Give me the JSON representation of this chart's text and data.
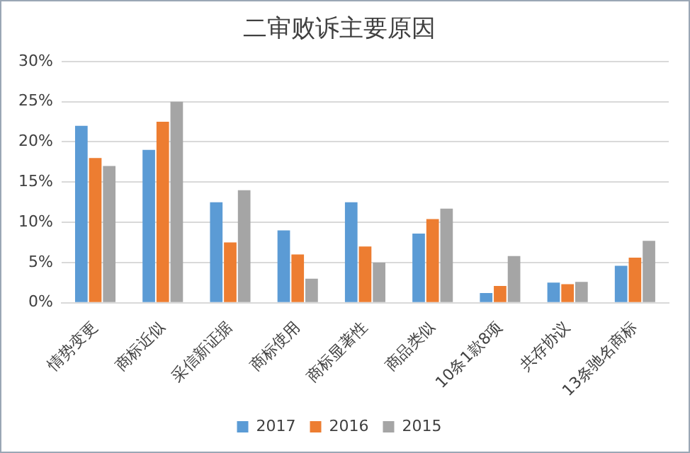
{
  "chart_data": {
    "type": "bar",
    "title": "二审败诉主要原因",
    "categories": [
      "情势变更",
      "商标近似",
      "采信新证据",
      "商标使用",
      "商标显著性",
      "商品类似",
      "10条1款8项",
      "共存协议",
      "13条驰名商标"
    ],
    "series": [
      {
        "name": "2017",
        "color": "#5b9bd5",
        "values": [
          22,
          19,
          12.5,
          9,
          12.5,
          8.6,
          1.2,
          2.5,
          4.6
        ]
      },
      {
        "name": "2016",
        "color": "#ed7d31",
        "values": [
          18,
          22.5,
          7.5,
          6,
          7,
          10.4,
          2.1,
          2.3,
          5.6
        ]
      },
      {
        "name": "2015",
        "color": "#a5a5a5",
        "values": [
          17,
          25,
          14,
          3,
          5,
          11.7,
          5.8,
          2.6,
          7.7
        ]
      }
    ],
    "ylim": [
      0,
      30
    ],
    "yticks": [
      {
        "value": 0,
        "label": "0%"
      },
      {
        "value": 5,
        "label": "5%"
      },
      {
        "value": 10,
        "label": "10%"
      },
      {
        "value": 15,
        "label": "15%"
      },
      {
        "value": 20,
        "label": "20%"
      },
      {
        "value": 25,
        "label": "25%"
      },
      {
        "value": 30,
        "label": "30%"
      }
    ],
    "grid": "y",
    "legend": "bottom"
  }
}
